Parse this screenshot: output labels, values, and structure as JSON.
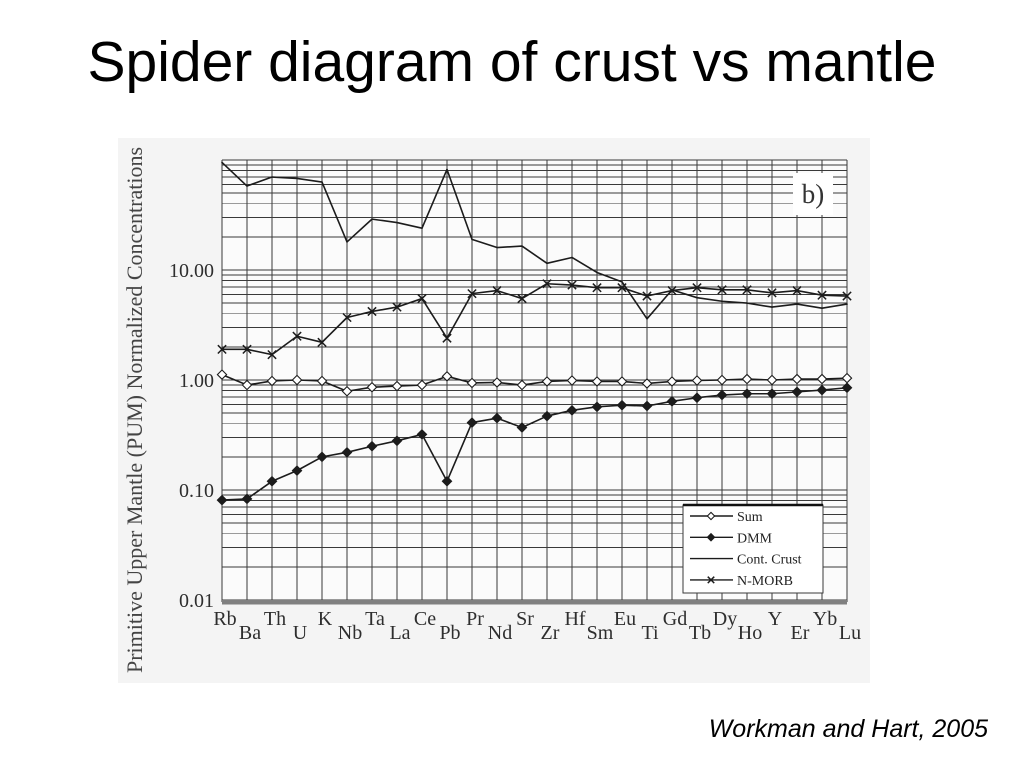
{
  "slide": {
    "title": "Spider diagram of crust vs mantle",
    "citation": "Workman and Hart, 2005"
  },
  "chart_data": {
    "type": "line",
    "panel_label": "b)",
    "ylabel": "Primitive Upper Mantle (PUM) Normalized Concentrations",
    "y_scale": "log",
    "ylim": [
      0.01,
      100
    ],
    "y_ticks": [
      {
        "value": 10,
        "label": "10.00"
      },
      {
        "value": 1,
        "label": "1.00"
      },
      {
        "value": 0.1,
        "label": "0.10"
      },
      {
        "value": 0.01,
        "label": "0.01"
      }
    ],
    "grid": true,
    "legend_position": "bottom-right",
    "categories": [
      "Rb",
      "Ba",
      "Th",
      "U",
      "K",
      "Nb",
      "Ta",
      "La",
      "Ce",
      "Pb",
      "Pr",
      "Nd",
      "Sr",
      "Zr",
      "Hf",
      "Sm",
      "Eu",
      "Ti",
      "Gd",
      "Tb",
      "Dy",
      "Ho",
      "Y",
      "Er",
      "Yb",
      "Lu"
    ],
    "series": [
      {
        "name": "Sum",
        "marker": "open-diamond",
        "values": [
          1.12,
          0.9,
          0.98,
          1.0,
          0.98,
          0.79,
          0.86,
          0.88,
          0.9,
          1.08,
          0.94,
          0.95,
          0.9,
          0.97,
          0.99,
          0.97,
          0.97,
          0.93,
          0.97,
          0.99,
          1.0,
          1.02,
          1.0,
          1.02,
          1.02,
          1.04
        ]
      },
      {
        "name": "DMM",
        "marker": "filled-diamond",
        "values": [
          0.081,
          0.083,
          0.12,
          0.15,
          0.2,
          0.22,
          0.25,
          0.28,
          0.32,
          0.12,
          0.41,
          0.45,
          0.37,
          0.47,
          0.53,
          0.57,
          0.59,
          0.58,
          0.64,
          0.69,
          0.73,
          0.75,
          0.75,
          0.78,
          0.81,
          0.85
        ]
      },
      {
        "name": "Cont. Crust",
        "marker": "none",
        "values": [
          95,
          58,
          70,
          68,
          63,
          18,
          29,
          27,
          24,
          82,
          19,
          16,
          16.5,
          11.5,
          13,
          9.5,
          7.8,
          3.6,
          6.6,
          5.6,
          5.2,
          5.0,
          4.6,
          4.9,
          4.5,
          4.9
        ]
      },
      {
        "name": "N-MORB",
        "marker": "cross",
        "values": [
          1.9,
          1.9,
          1.7,
          2.5,
          2.2,
          3.7,
          4.2,
          4.6,
          5.5,
          2.4,
          6.1,
          6.5,
          5.5,
          7.5,
          7.3,
          6.9,
          6.9,
          5.8,
          6.5,
          6.9,
          6.6,
          6.6,
          6.2,
          6.5,
          5.9,
          5.8
        ]
      }
    ],
    "colors": {
      "series": "#1c1c1c",
      "grid": "#3a3a3a",
      "axis_base": "#808080"
    }
  }
}
